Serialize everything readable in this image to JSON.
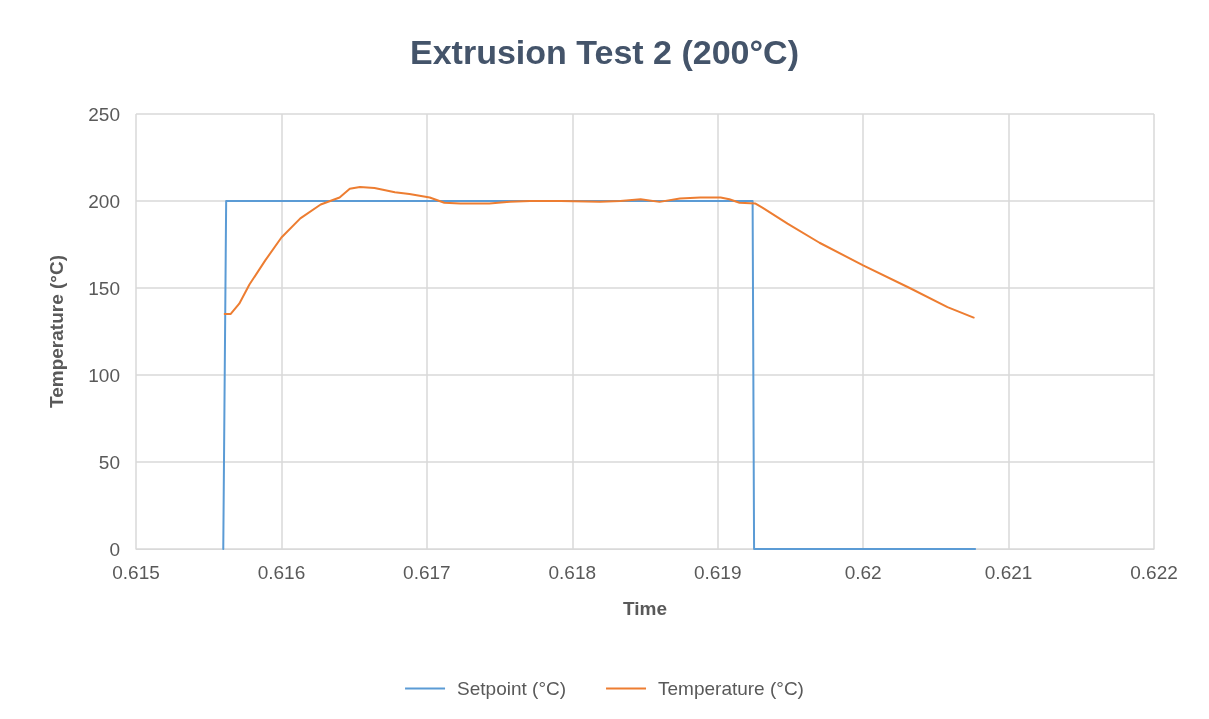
{
  "chart_data": {
    "type": "line",
    "title": "Extrusion Test 2 (200°C)",
    "xlabel": "Time",
    "ylabel": "Temperature (°C)",
    "xlim": [
      0.615,
      0.622
    ],
    "xticks": [
      0.615,
      0.616,
      0.617,
      0.618,
      0.619,
      0.62,
      0.621,
      0.622
    ],
    "ylim": [
      0,
      250
    ],
    "yticks": [
      0,
      50,
      100,
      150,
      200,
      250
    ],
    "grid": true,
    "legend": "bottom",
    "marker": "none",
    "line_style": "solid",
    "series": [
      {
        "name": "Setpoint (°C)",
        "color": "#5b9bd5",
        "x": [
          0.6156,
          0.61562,
          0.61924,
          0.61925,
          0.62077
        ],
        "values": [
          0,
          200,
          200,
          0,
          0
        ]
      },
      {
        "name": "Temperature (°C)",
        "color": "#ed7d31",
        "x": [
          0.61561,
          0.61565,
          0.61571,
          0.61578,
          0.61589,
          0.616,
          0.61613,
          0.61627,
          0.6164,
          0.61647,
          0.61654,
          0.61664,
          0.61678,
          0.61688,
          0.61702,
          0.61712,
          0.61723,
          0.61743,
          0.61757,
          0.61771,
          0.61792,
          0.61819,
          0.61833,
          0.61847,
          0.6186,
          0.61874,
          0.61888,
          0.61902,
          0.61908,
          0.61915,
          0.61926,
          0.61931,
          0.61948,
          0.6197,
          0.62,
          0.62032,
          0.62058,
          0.62076
        ],
        "values": [
          135,
          135,
          141,
          152,
          166,
          179,
          190,
          198,
          202,
          207,
          208,
          207.5,
          205,
          204,
          202,
          199,
          198.5,
          198.5,
          199.5,
          200,
          200,
          199.5,
          200,
          201,
          199.5,
          201.5,
          202,
          202,
          201,
          199,
          198.5,
          196,
          187,
          176,
          163,
          150,
          139,
          133
        ]
      }
    ]
  }
}
